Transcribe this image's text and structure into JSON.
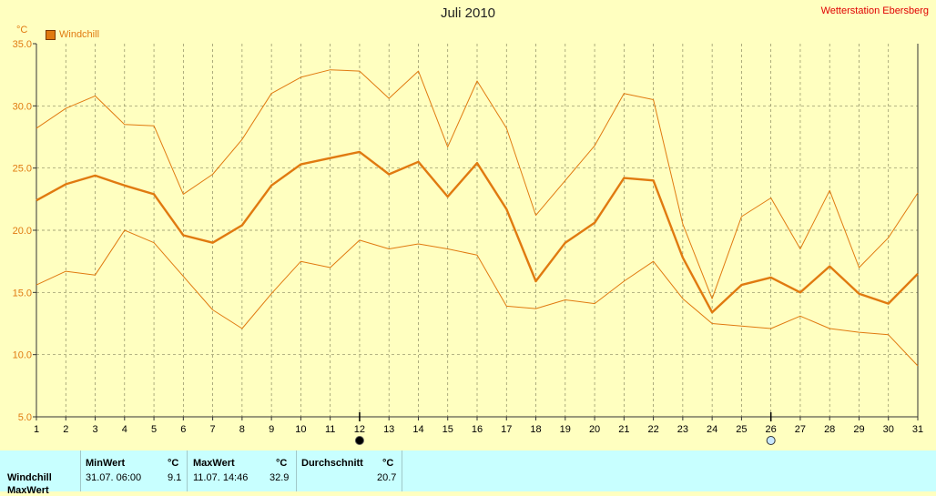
{
  "header": {
    "title": "Juli 2010",
    "station": "Wetterstation Ebersberg",
    "unit": "°C",
    "legend_label": "Windchill"
  },
  "colors": {
    "background": "#ffffc0",
    "series": "#e07a10",
    "stats_background": "#c8ffff",
    "station_text": "#e00000"
  },
  "markers": {
    "day_12": "filled-circle-icon",
    "day_26": "hollow-circle-icon"
  },
  "chart_data": {
    "type": "line",
    "title": "Juli 2010",
    "ylabel": "°C",
    "ylim": [
      5.0,
      35.0
    ],
    "yticks": [
      "5.0",
      "10.0",
      "15.0",
      "20.0",
      "25.0",
      "30.0",
      "35.0"
    ],
    "x": [
      1,
      2,
      3,
      4,
      5,
      6,
      7,
      8,
      9,
      10,
      11,
      12,
      13,
      14,
      15,
      16,
      17,
      18,
      19,
      20,
      21,
      22,
      23,
      24,
      25,
      26,
      27,
      28,
      29,
      30,
      31
    ],
    "xticks": [
      "1",
      "2",
      "3",
      "4",
      "5",
      "6",
      "7",
      "8",
      "9",
      "10",
      "11",
      "12",
      "13",
      "14",
      "15",
      "16",
      "17",
      "18",
      "19",
      "20",
      "21",
      "22",
      "23",
      "24",
      "25",
      "26",
      "27",
      "28",
      "29",
      "30",
      "31"
    ],
    "grid": true,
    "legend": "top-left",
    "series": [
      {
        "name": "Windchill",
        "role": "max",
        "values": [
          28.2,
          29.8,
          30.8,
          28.5,
          28.4,
          22.9,
          24.5,
          27.3,
          31.0,
          32.3,
          32.9,
          32.8,
          30.6,
          32.8,
          26.7,
          32.0,
          28.2,
          21.2,
          24.0,
          26.8,
          31.0,
          30.5,
          20.5,
          14.5,
          21.1,
          22.6,
          18.5,
          23.2,
          17.0,
          19.4,
          23.0
        ]
      },
      {
        "name": "Windchill",
        "role": "average",
        "values": [
          22.4,
          23.7,
          24.4,
          23.6,
          22.9,
          19.6,
          19.0,
          20.4,
          23.6,
          25.3,
          25.8,
          26.3,
          24.5,
          25.5,
          22.7,
          25.4,
          21.7,
          15.9,
          19.0,
          20.6,
          24.2,
          24.0,
          17.8,
          13.4,
          15.6,
          16.2,
          15.0,
          17.1,
          14.9,
          14.1,
          16.5
        ]
      },
      {
        "name": "Windchill",
        "role": "min",
        "values": [
          15.6,
          16.7,
          16.4,
          20.0,
          19.0,
          16.3,
          13.6,
          12.1,
          14.9,
          17.5,
          17.0,
          19.2,
          18.5,
          18.9,
          18.5,
          18.0,
          13.9,
          13.7,
          14.4,
          14.1,
          15.9,
          17.5,
          14.5,
          12.5,
          12.3,
          12.1,
          13.1,
          12.1,
          11.8,
          11.6,
          9.1
        ]
      }
    ]
  },
  "stats": {
    "row_label": "Windchill",
    "row_label_2": "MaxWert",
    "min": {
      "header": "MinWert",
      "unit": "°C",
      "datetime": "31.07.  06:00",
      "value": "9.1"
    },
    "max": {
      "header": "MaxWert",
      "unit": "°C",
      "datetime": "11.07.  14:46",
      "value": "32.9"
    },
    "avg": {
      "header": "Durchschnitt",
      "unit": "°C",
      "value": "20.7"
    }
  }
}
